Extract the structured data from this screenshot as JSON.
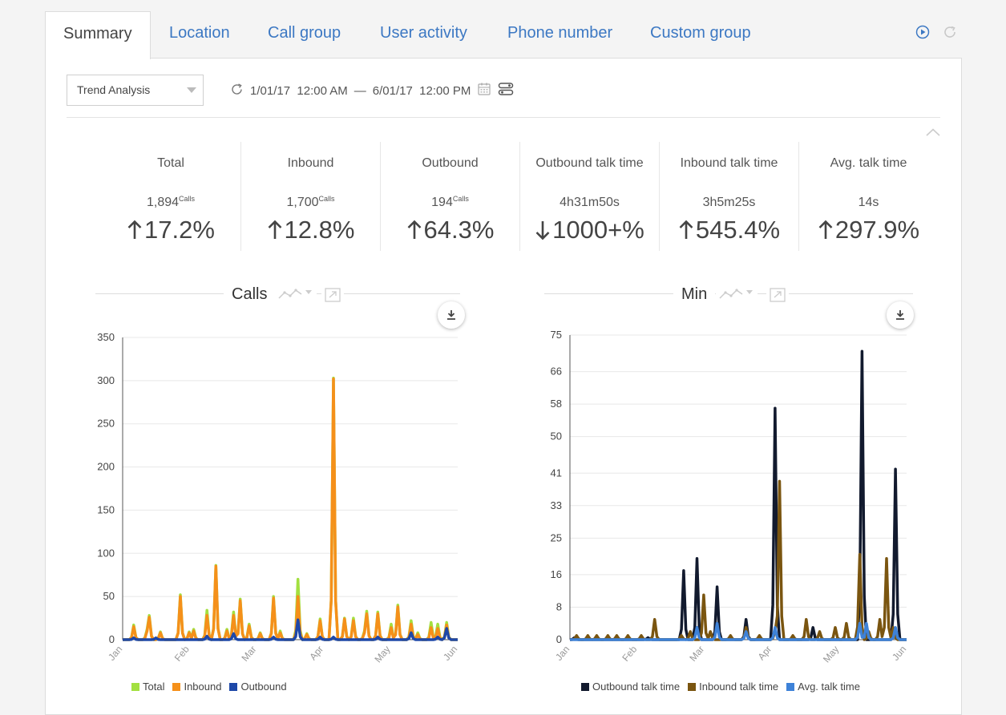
{
  "tabs": [
    {
      "label": "Summary",
      "active": true
    },
    {
      "label": "Location"
    },
    {
      "label": "Call group"
    },
    {
      "label": "User activity"
    },
    {
      "label": "Phone number"
    },
    {
      "label": "Custom group"
    }
  ],
  "toolbar": {
    "analysis_select": "Trend Analysis",
    "date_start": "1/01/17  12:00 AM",
    "date_sep": "—",
    "date_end": "6/01/17  12:00 PM"
  },
  "stats": [
    {
      "label": "Total",
      "value": "1,894",
      "unit": "Calls",
      "direction": "up",
      "change": "17.2%"
    },
    {
      "label": "Inbound",
      "value": "1,700",
      "unit": "Calls",
      "direction": "up",
      "change": "12.8%"
    },
    {
      "label": "Outbound",
      "value": "194",
      "unit": "Calls",
      "direction": "up",
      "change": "64.3%"
    },
    {
      "label": "Outbound talk time",
      "value": "4h31m50s",
      "unit": "",
      "direction": "down",
      "change": "1000+%"
    },
    {
      "label": "Inbound talk time",
      "value": "3h5m25s",
      "unit": "",
      "direction": "up",
      "change": "545.4%"
    },
    {
      "label": "Avg. talk time",
      "value": "14s",
      "unit": "",
      "direction": "up",
      "change": "297.9%"
    }
  ],
  "colors": {
    "accent": "#3c78c3",
    "total": "#a3e040",
    "inbound": "#f5901a",
    "outbound": "#1e48a8",
    "outbound_talk": "#121a2e",
    "inbound_talk": "#7a5510",
    "avg_talk": "#3e82d8"
  },
  "chart_data": [
    {
      "type": "line",
      "title": "Calls",
      "x_ticks": [
        "Jan",
        "Feb",
        "Mar",
        "Apr",
        "May",
        "Jun"
      ],
      "y_ticks": [
        "0",
        "50",
        "100",
        "150",
        "200",
        "250",
        "300",
        "350"
      ],
      "ylim": [
        0,
        350
      ],
      "grid": true,
      "legend_position": "bottom",
      "series": [
        {
          "name": "Total",
          "color": "#a3e040",
          "peaks": [
            [
              0.03,
              17
            ],
            [
              0.07,
              12
            ],
            [
              0.08,
              28
            ],
            [
              0.11,
              9
            ],
            [
              0.17,
              52
            ],
            [
              0.2,
              9
            ],
            [
              0.21,
              12
            ],
            [
              0.25,
              34
            ],
            [
              0.28,
              86
            ],
            [
              0.31,
              12
            ],
            [
              0.33,
              32
            ],
            [
              0.35,
              47
            ],
            [
              0.38,
              18
            ],
            [
              0.41,
              8
            ],
            [
              0.45,
              50
            ],
            [
              0.47,
              10
            ],
            [
              0.52,
              70
            ],
            [
              0.55,
              7
            ],
            [
              0.59,
              24
            ],
            [
              0.63,
              303
            ],
            [
              0.66,
              25
            ],
            [
              0.69,
              25
            ],
            [
              0.72,
              10
            ],
            [
              0.73,
              33
            ],
            [
              0.76,
              32
            ],
            [
              0.8,
              18
            ],
            [
              0.82,
              40
            ],
            [
              0.86,
              22
            ],
            [
              0.88,
              8
            ],
            [
              0.92,
              20
            ],
            [
              0.94,
              18
            ],
            [
              0.97,
              20
            ]
          ]
        },
        {
          "name": "Inbound",
          "color": "#f5901a",
          "peaks": [
            [
              0.03,
              15
            ],
            [
              0.07,
              10
            ],
            [
              0.08,
              26
            ],
            [
              0.11,
              8
            ],
            [
              0.17,
              50
            ],
            [
              0.2,
              8
            ],
            [
              0.21,
              10
            ],
            [
              0.25,
              28
            ],
            [
              0.28,
              85
            ],
            [
              0.31,
              10
            ],
            [
              0.33,
              28
            ],
            [
              0.35,
              45
            ],
            [
              0.38,
              16
            ],
            [
              0.41,
              7
            ],
            [
              0.45,
              48
            ],
            [
              0.47,
              8
            ],
            [
              0.52,
              50
            ],
            [
              0.55,
              6
            ],
            [
              0.59,
              22
            ],
            [
              0.63,
              302
            ],
            [
              0.66,
              24
            ],
            [
              0.69,
              22
            ],
            [
              0.72,
              8
            ],
            [
              0.73,
              30
            ],
            [
              0.76,
              30
            ],
            [
              0.8,
              14
            ],
            [
              0.82,
              38
            ],
            [
              0.86,
              18
            ],
            [
              0.88,
              6
            ],
            [
              0.92,
              14
            ],
            [
              0.94,
              13
            ],
            [
              0.97,
              17
            ]
          ]
        },
        {
          "name": "Outbound",
          "color": "#1e48a8",
          "peaks": [
            [
              0.03,
              2
            ],
            [
              0.1,
              2
            ],
            [
              0.25,
              4
            ],
            [
              0.33,
              7
            ],
            [
              0.45,
              3
            ],
            [
              0.52,
              23
            ],
            [
              0.59,
              3
            ],
            [
              0.63,
              3
            ],
            [
              0.76,
              3
            ],
            [
              0.86,
              8
            ],
            [
              0.94,
              3
            ],
            [
              0.97,
              13
            ]
          ]
        }
      ]
    },
    {
      "type": "line",
      "title": "Min",
      "x_ticks": [
        "Jan",
        "Feb",
        "Mar",
        "Apr",
        "May",
        "Jun"
      ],
      "y_ticks": [
        "0",
        "8",
        "16",
        "25",
        "33",
        "41",
        "50",
        "58",
        "66",
        "75"
      ],
      "ylim": [
        0,
        75
      ],
      "grid": true,
      "legend_position": "bottom",
      "series": [
        {
          "name": "Outbound talk time",
          "color": "#121a2e",
          "peaks": [
            [
              0.01,
              0.5
            ],
            [
              0.23,
              0.5
            ],
            [
              0.34,
              17
            ],
            [
              0.38,
              20
            ],
            [
              0.44,
              13
            ],
            [
              0.52,
              5
            ],
            [
              0.61,
              57
            ],
            [
              0.72,
              3
            ],
            [
              0.87,
              71
            ],
            [
              0.97,
              42
            ]
          ]
        },
        {
          "name": "Inbound talk time",
          "color": "#7a5510",
          "peaks": [
            [
              0.02,
              1
            ],
            [
              0.05,
              1
            ],
            [
              0.08,
              1
            ],
            [
              0.11,
              1
            ],
            [
              0.14,
              1
            ],
            [
              0.17,
              1
            ],
            [
              0.21,
              1
            ],
            [
              0.25,
              5
            ],
            [
              0.33,
              1
            ],
            [
              0.36,
              2
            ],
            [
              0.4,
              11
            ],
            [
              0.42,
              2
            ],
            [
              0.48,
              1
            ],
            [
              0.52,
              3
            ],
            [
              0.56,
              1
            ],
            [
              0.61,
              2
            ],
            [
              0.62,
              39
            ],
            [
              0.66,
              1
            ],
            [
              0.7,
              5
            ],
            [
              0.74,
              2
            ],
            [
              0.79,
              3
            ],
            [
              0.82,
              4
            ],
            [
              0.86,
              21
            ],
            [
              0.89,
              2
            ],
            [
              0.92,
              5
            ],
            [
              0.94,
              20
            ],
            [
              0.96,
              3
            ]
          ]
        },
        {
          "name": "Avg. talk time",
          "color": "#3e82d8",
          "peaks": [
            [
              0.38,
              3
            ],
            [
              0.44,
              4
            ],
            [
              0.52,
              2
            ],
            [
              0.61,
              3
            ],
            [
              0.86,
              4
            ],
            [
              0.88,
              4
            ],
            [
              0.97,
              3
            ]
          ]
        }
      ]
    }
  ]
}
